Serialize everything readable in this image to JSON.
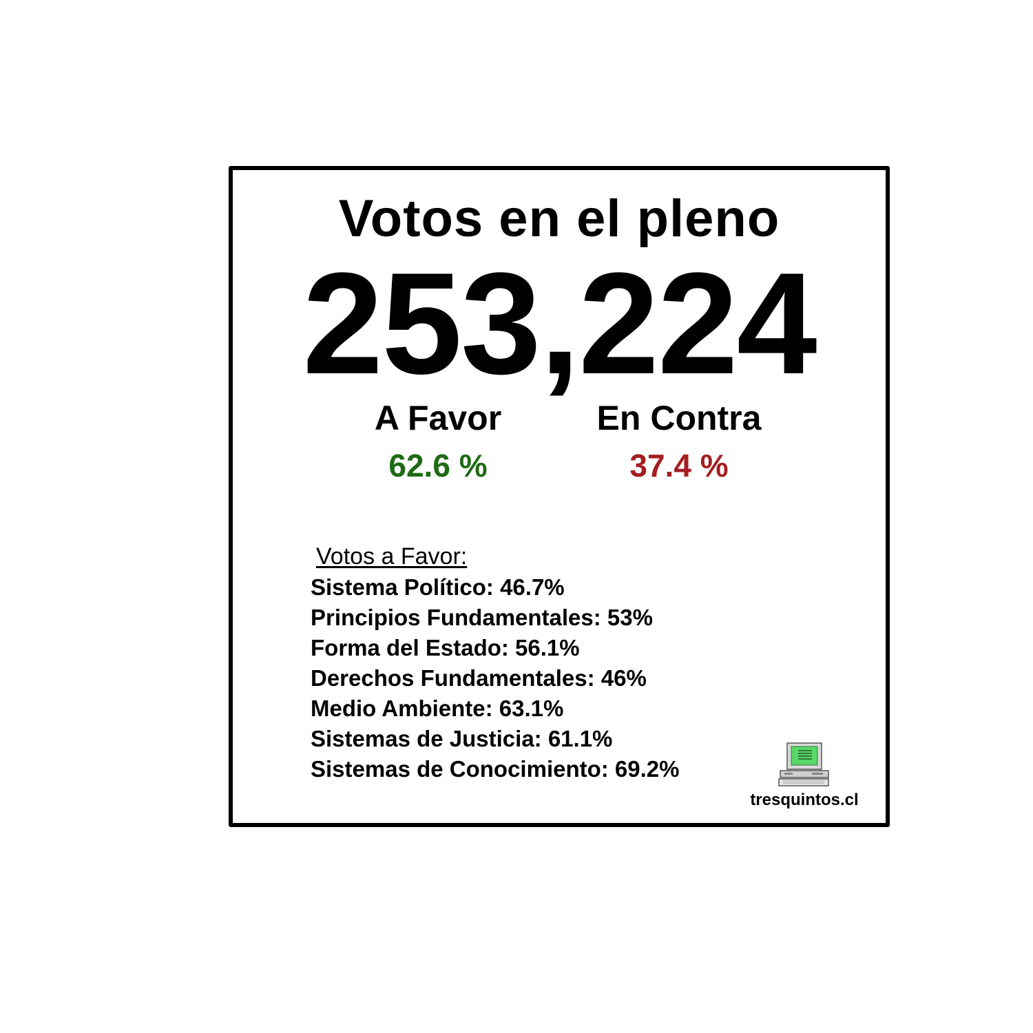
{
  "card": {
    "title": "Votos en el pleno",
    "total": "253,224"
  },
  "stats": {
    "favor": {
      "label": "A Favor",
      "value": "62.6 %",
      "color": "#1e6a14"
    },
    "contra": {
      "label": "En Contra",
      "value": "37.4 %",
      "color": "#a51e22"
    }
  },
  "breakdown": {
    "title": "Votos a Favor:",
    "items": [
      "Sistema Político: 46.7%",
      "Principios Fundamentales: 53%",
      "Forma del Estado: 56.1%",
      "Derechos Fundamentales: 46%",
      "Medio Ambiente: 63.1%",
      "Sistemas de Justicia: 61.1%",
      "Sistemas de Conocimiento: 69.2%"
    ]
  },
  "logo": {
    "icon": "computer-icon",
    "text": "tresquintos.cl"
  }
}
